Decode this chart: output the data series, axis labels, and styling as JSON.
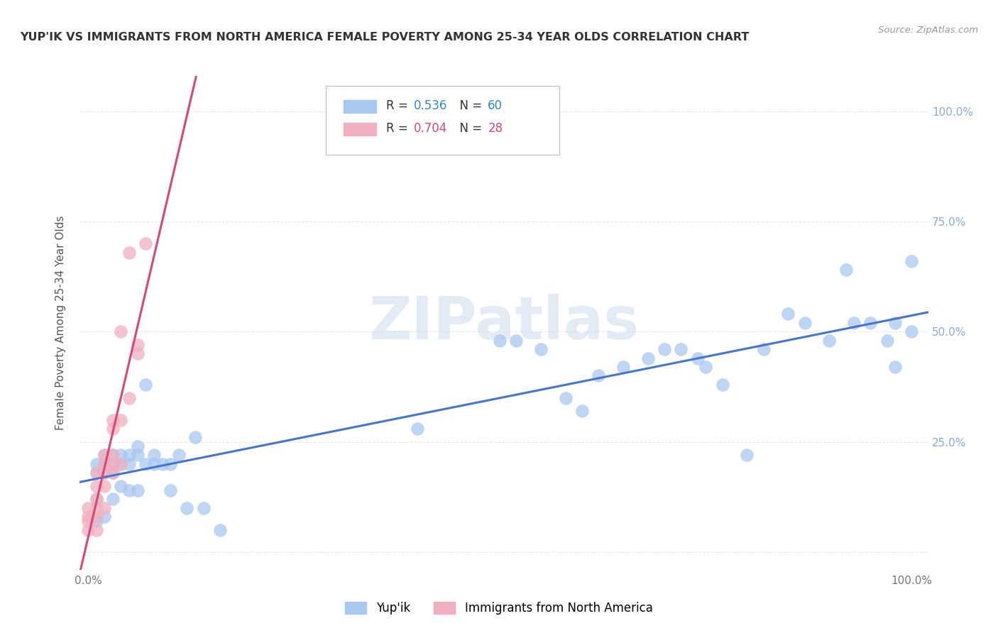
{
  "title": "YUP'IK VS IMMIGRANTS FROM NORTH AMERICA FEMALE POVERTY AMONG 25-34 YEAR OLDS CORRELATION CHART",
  "source": "Source: ZipAtlas.com",
  "ylabel": "Female Poverty Among 25-34 Year Olds",
  "watermark": "ZIPatlas",
  "blue_series": {
    "name": "Yup'ik",
    "color": "#a8c8f0",
    "line_color": "#4477cc",
    "x": [
      0.01,
      0.01,
      0.02,
      0.02,
      0.02,
      0.03,
      0.03,
      0.03,
      0.04,
      0.04,
      0.05,
      0.05,
      0.06,
      0.06,
      0.07,
      0.08,
      0.09,
      0.1,
      0.11,
      0.13,
      0.4,
      0.5,
      0.52,
      0.55,
      0.58,
      0.6,
      0.62,
      0.65,
      0.68,
      0.7,
      0.72,
      0.74,
      0.75,
      0.77,
      0.8,
      0.82,
      0.85,
      0.87,
      0.9,
      0.92,
      0.93,
      0.95,
      0.97,
      0.98,
      0.98,
      1.0,
      1.0,
      0.01,
      0.01,
      0.02,
      0.03,
      0.04,
      0.05,
      0.06,
      0.07,
      0.08,
      0.1,
      0.12,
      0.14,
      0.16
    ],
    "y": [
      0.18,
      0.2,
      0.18,
      0.2,
      0.22,
      0.18,
      0.2,
      0.22,
      0.2,
      0.22,
      0.2,
      0.22,
      0.22,
      0.24,
      0.38,
      0.22,
      0.2,
      0.2,
      0.22,
      0.26,
      0.28,
      0.48,
      0.48,
      0.46,
      0.35,
      0.32,
      0.4,
      0.42,
      0.44,
      0.46,
      0.46,
      0.44,
      0.42,
      0.38,
      0.22,
      0.46,
      0.54,
      0.52,
      0.48,
      0.64,
      0.52,
      0.52,
      0.48,
      0.52,
      0.42,
      0.5,
      0.66,
      0.07,
      0.12,
      0.08,
      0.12,
      0.15,
      0.14,
      0.14,
      0.2,
      0.2,
      0.14,
      0.1,
      0.1,
      0.05
    ]
  },
  "pink_series": {
    "name": "Immigrants from North America",
    "color": "#f0b0c0",
    "line_color": "#dd4477",
    "x": [
      0.0,
      0.0,
      0.0,
      0.0,
      0.01,
      0.01,
      0.01,
      0.01,
      0.01,
      0.01,
      0.02,
      0.02,
      0.02,
      0.02,
      0.02,
      0.03,
      0.03,
      0.03,
      0.03,
      0.03,
      0.04,
      0.04,
      0.04,
      0.05,
      0.05,
      0.06,
      0.06,
      0.07
    ],
    "y": [
      0.05,
      0.07,
      0.08,
      0.1,
      0.05,
      0.08,
      0.1,
      0.12,
      0.15,
      0.18,
      0.1,
      0.15,
      0.18,
      0.2,
      0.22,
      0.18,
      0.2,
      0.22,
      0.28,
      0.3,
      0.2,
      0.3,
      0.5,
      0.35,
      0.68,
      0.45,
      0.47,
      0.7
    ]
  },
  "xlim": [
    -0.01,
    1.02
  ],
  "ylim": [
    -0.04,
    1.08
  ],
  "xticks": [
    0.0,
    0.25,
    0.5,
    0.75,
    1.0
  ],
  "xticklabels": [
    "0.0%",
    "",
    "",
    "",
    "100.0%"
  ],
  "yticks": [
    0.0,
    0.25,
    0.5,
    0.75,
    1.0
  ],
  "yticklabels_left": [
    "",
    "",
    "",
    "",
    ""
  ],
  "yticklabels_right": [
    "",
    "25.0%",
    "50.0%",
    "75.0%",
    "100.0%"
  ],
  "grid_color": "#e0e0e0",
  "bg_color": "#ffffff",
  "R_blue": "0.536",
  "N_blue": "60",
  "R_pink": "0.704",
  "N_pink": "28",
  "legend_color_blue": "#a8c8f0",
  "legend_color_pink": "#f0b0c0",
  "right_tick_color": "#88aadd"
}
